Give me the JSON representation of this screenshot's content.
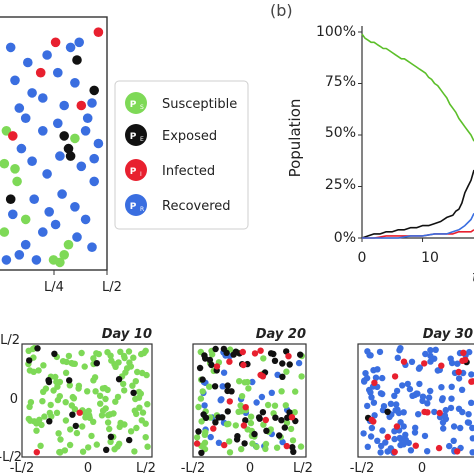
{
  "panel_b_label": "(b)",
  "legend": {
    "items": [
      {
        "symbol": "P",
        "sub": "S",
        "label": "Susceptible",
        "color": "#7ed957"
      },
      {
        "symbol": "P",
        "sub": "E",
        "label": "Exposed",
        "color": "#111111"
      },
      {
        "symbol": "P",
        "sub": "I",
        "label": "Infected",
        "color": "#e8202f"
      },
      {
        "symbol": "P",
        "sub": "R",
        "label": "Recovered",
        "color": "#3a6ee0"
      }
    ]
  },
  "colors": {
    "susceptible": "#7ed957",
    "exposed": "#111111",
    "infected": "#e8202f",
    "recovered": "#3a6ee0"
  },
  "chart_data": [
    {
      "type": "scatter",
      "panel": "top-left",
      "x_tick_labels": [
        "L/4",
        "L/2"
      ],
      "xlim": [
        0,
        0.5
      ],
      "ylim": [
        -0.5,
        0.5
      ],
      "series": [
        {
          "name": "Susceptible",
          "color": "#7ed957",
          "points": [
            [
              0.03,
              0.05
            ],
            [
              0.02,
              -0.08
            ],
            [
              0.08,
              -0.15
            ],
            [
              0.02,
              -0.35
            ],
            [
              0.12,
              -0.3
            ],
            [
              0.25,
              -0.46
            ],
            [
              0.28,
              -0.47
            ],
            [
              0.3,
              -0.44
            ],
            [
              0.35,
              0.02
            ],
            [
              0.07,
              -0.1
            ],
            [
              0.32,
              -0.4
            ]
          ]
        },
        {
          "name": "Exposed",
          "color": "#111111",
          "points": [
            [
              0.36,
              0.33
            ],
            [
              0.44,
              0.21
            ],
            [
              0.3,
              0.03
            ],
            [
              0.32,
              -0.02
            ],
            [
              0.33,
              -0.05
            ],
            [
              0.05,
              -0.22
            ]
          ]
        },
        {
          "name": "Infected",
          "color": "#e8202f",
          "points": [
            [
              0.19,
              0.28
            ],
            [
              0.26,
              0.4
            ],
            [
              0.38,
              0.15
            ],
            [
              0.06,
              0.03
            ],
            [
              0.46,
              0.44
            ]
          ]
        },
        {
          "name": "Recovered",
          "color": "#3a6ee0",
          "points": [
            [
              0.05,
              0.38
            ],
            [
              0.15,
              0.2
            ],
            [
              0.22,
              0.35
            ],
            [
              0.33,
              0.38
            ],
            [
              0.37,
              0.4
            ],
            [
              0.2,
              0.18
            ],
            [
              0.3,
              0.15
            ],
            [
              0.43,
              0.16
            ],
            [
              0.35,
              0.24
            ],
            [
              0.07,
              0.25
            ],
            [
              0.12,
              0.1
            ],
            [
              0.2,
              0.05
            ],
            [
              0.27,
              0.08
            ],
            [
              0.4,
              0.05
            ],
            [
              0.46,
              0.0
            ],
            [
              0.1,
              -0.02
            ],
            [
              0.15,
              -0.07
            ],
            [
              0.22,
              -0.12
            ],
            [
              0.28,
              -0.05
            ],
            [
              0.38,
              -0.09
            ],
            [
              0.44,
              -0.15
            ],
            [
              0.06,
              -0.28
            ],
            [
              0.16,
              -0.22
            ],
            [
              0.23,
              -0.27
            ],
            [
              0.29,
              -0.2
            ],
            [
              0.35,
              -0.25
            ],
            [
              0.4,
              -0.3
            ],
            [
              0.12,
              -0.4
            ],
            [
              0.2,
              -0.35
            ],
            [
              0.26,
              -0.32
            ],
            [
              0.36,
              -0.37
            ],
            [
              0.43,
              -0.41
            ],
            [
              0.09,
              -0.44
            ],
            [
              0.17,
              -0.46
            ],
            [
              0.03,
              -0.46
            ],
            [
              0.41,
              0.1
            ],
            [
              0.13,
              0.32
            ],
            [
              0.27,
              0.28
            ],
            [
              0.09,
              0.14
            ],
            [
              0.44,
              -0.06
            ]
          ]
        }
      ]
    },
    {
      "type": "line",
      "panel": "b",
      "ylabel": "Population",
      "y_tick_labels": [
        "0%",
        "25%",
        "50%",
        "75%",
        "100%"
      ],
      "x_tick_labels": [
        "0",
        "10"
      ],
      "xlabel_partial": "t",
      "ylim": [
        0,
        100
      ],
      "xlim": [
        0,
        18.5
      ],
      "series": [
        {
          "name": "Susceptible",
          "color": "#5cbf2a",
          "x": [
            0,
            0.5,
            1,
            1.5,
            2,
            2.5,
            3,
            3.5,
            4,
            4.5,
            5,
            5.5,
            6,
            6.5,
            7,
            7.5,
            8,
            8.5,
            9,
            9.5,
            10,
            10.5,
            11,
            11.5,
            12,
            12.5,
            13,
            13.5,
            14,
            14.5,
            15,
            15.5,
            16,
            16.5,
            17,
            17.5,
            18,
            18.5
          ],
          "y": [
            99,
            97,
            96,
            95,
            95,
            94,
            93,
            92,
            92,
            91,
            90,
            89,
            88,
            87,
            87,
            86,
            85,
            84,
            83,
            82,
            81,
            80,
            78,
            77,
            75,
            74,
            72,
            70,
            68,
            65,
            63,
            61,
            58,
            56,
            54,
            52,
            50,
            47
          ]
        },
        {
          "name": "Exposed",
          "color": "#111111",
          "x": [
            0,
            1,
            2,
            3,
            4,
            5,
            6,
            7,
            8,
            9,
            10,
            11,
            12,
            13,
            14,
            15,
            15.5,
            16,
            16.5,
            17,
            17.5,
            18,
            18.5
          ],
          "y": [
            0,
            1,
            2,
            2,
            3,
            3,
            4,
            4,
            5,
            5,
            6,
            6,
            7,
            8,
            10,
            11,
            13,
            14,
            17,
            22,
            25,
            28,
            33
          ]
        },
        {
          "name": "Infected",
          "color": "#e8202f",
          "x": [
            0,
            2,
            4,
            6,
            8,
            10,
            12,
            14,
            15,
            16,
            17,
            18,
            18.5
          ],
          "y": [
            0,
            0,
            1,
            1,
            1,
            1,
            2,
            2,
            2,
            3,
            3,
            3,
            4
          ]
        },
        {
          "name": "Recovered",
          "color": "#3a6ee0",
          "x": [
            0,
            2,
            4,
            6,
            8,
            10,
            12,
            14,
            15,
            16,
            17,
            18,
            18.5
          ],
          "y": [
            0,
            0,
            0,
            0,
            1,
            1,
            2,
            2,
            3,
            4,
            6,
            9,
            12
          ]
        }
      ]
    },
    {
      "type": "scatter",
      "panel": "day-10",
      "title": "Day 10",
      "x_tick_labels": [
        "-L/2",
        "0",
        "L/2"
      ],
      "y_tick_labels": [
        "L/2",
        "0",
        "-L/2"
      ],
      "xlim": [
        -0.5,
        0.5
      ],
      "ylim": [
        -0.5,
        0.5
      ],
      "composition": {
        "Susceptible": 150,
        "Exposed": 15,
        "Infected": 2,
        "Recovered": 0
      }
    },
    {
      "type": "scatter",
      "panel": "day-20",
      "title": "Day 20",
      "x_tick_labels": [
        "-L/2",
        "0",
        "L/2"
      ],
      "xlim": [
        -0.5,
        0.5
      ],
      "ylim": [
        -0.5,
        0.5
      ],
      "composition": {
        "Susceptible": 70,
        "Exposed": 55,
        "Infected": 18,
        "Recovered": 30
      }
    },
    {
      "type": "scatter",
      "panel": "day-30",
      "title": "Day 30",
      "x_tick_labels": [
        "-L/2",
        "0"
      ],
      "xlim": [
        -0.5,
        0.5
      ],
      "ylim": [
        -0.5,
        0.5
      ],
      "composition": {
        "Susceptible": 0,
        "Exposed": 3,
        "Infected": 22,
        "Recovered": 140
      }
    }
  ]
}
